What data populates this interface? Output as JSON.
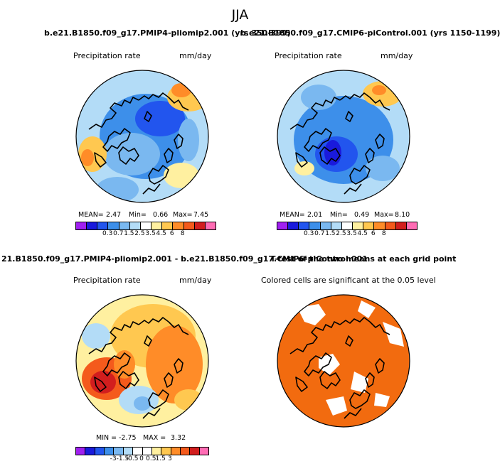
{
  "title": "JJA",
  "panel1": {
    "case": "b.e21.B1850.f09_g17.PMIP4-pliomip2.001 (yrs 350-399)",
    "variable": "Precipitation rate",
    "units": "mm/day",
    "stats": {
      "mean_label": "MEAN=",
      "mean": "2.47",
      "min_label": "Min=",
      "min": "0.66",
      "max_label": "Max=",
      "max": "7.45"
    }
  },
  "panel2": {
    "case": "b.e21.B1850.f09_g17.CMIP6-piControl.001 (yrs 1150-1199)",
    "variable": "Precipitation rate",
    "units": "mm/day",
    "stats": {
      "mean_label": "MEAN=",
      "mean": "2.01",
      "min_label": "Min=",
      "min": "0.49",
      "max_label": "Max=",
      "max": "8.10"
    }
  },
  "panel3": {
    "case": "21.B1850.f09_g17.PMIP4-pliomip2.001 - b.e21.B1850.f09_g17.CMIP6-piControl.001",
    "variable": "Precipitation rate",
    "units": "mm/day",
    "stats": {
      "min_label": "MIN =",
      "min": "-2.75",
      "max_label": "MAX =",
      "max": "3.32"
    }
  },
  "panel4": {
    "heading": "T-test of the two means at each grid point",
    "note": "Colored cells are significant at the 0.05 level"
  },
  "colorbar_abs": {
    "ticks": [
      "0.3",
      "0.7",
      "1.5",
      "2.5",
      "3.5",
      "4.5",
      "6",
      "8"
    ],
    "colors": [
      "#a020f0",
      "#1a1adc",
      "#2255ee",
      "#3d8fea",
      "#7ab8f0",
      "#b3dcf7",
      "#ffffff",
      "#fff0a0",
      "#ffc850",
      "#ff8c28",
      "#f45a1c",
      "#d21e1e",
      "#ff6cb4"
    ]
  },
  "colorbar_diff": {
    "ticks": [
      "-3",
      "-1.5",
      "-0.5",
      "0",
      "0.5",
      "1.5",
      "3"
    ],
    "colors": [
      "#a020f0",
      "#1a1adc",
      "#2255ee",
      "#3d8fea",
      "#7ab8f0",
      "#b3dcf7",
      "#ffffff",
      "#ffffff",
      "#fff0a0",
      "#ffc850",
      "#ff8c28",
      "#f45a1c",
      "#d21e1e",
      "#ff6cb4"
    ]
  },
  "significance_color": "#f26b0f"
}
